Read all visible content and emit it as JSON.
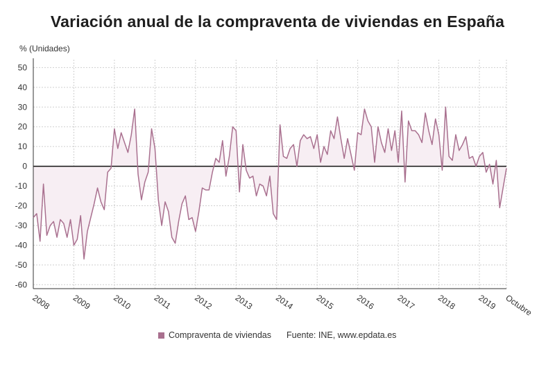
{
  "header": {
    "title": "Variación anual de la compraventa de viviendas en España",
    "unit_label": "% (Unidades)"
  },
  "legend": {
    "series_label": "Compraventa de viviendas",
    "source": "Fuente: INE, www.epdata.es"
  },
  "colors": {
    "line": "#a9708f",
    "fill": "#f7eef3",
    "zero_line": "#111111",
    "grid": "#cfcfcf"
  },
  "chart_data": {
    "type": "line",
    "ylabel": "% (Unidades)",
    "ylim": [
      -62,
      54
    ],
    "yticks": [
      50,
      40,
      30,
      20,
      10,
      0,
      -10,
      -20,
      -30,
      -40,
      -50,
      -60
    ],
    "x_tick_labels": [
      "2008",
      "2009",
      "2010",
      "2011",
      "2012",
      "2013",
      "2014",
      "2015",
      "2016",
      "2017",
      "2018",
      "2019",
      "Octubre"
    ],
    "x_start": "2008-01",
    "x_end": "2019-10",
    "grid": true,
    "area_fill": true,
    "series": [
      {
        "name": "Compraventa de viviendas",
        "values": [
          -26,
          -24,
          -38,
          -9,
          -35,
          -30,
          -28,
          -36,
          -27,
          -29,
          -36,
          -27,
          -40,
          -37,
          -25,
          -47,
          -33,
          -26,
          -19,
          -11,
          -18,
          -22,
          -3,
          -1,
          19,
          9,
          17,
          12,
          7,
          16,
          29,
          -4,
          -17,
          -8,
          -3,
          19,
          9,
          -17,
          -30,
          -18,
          -23,
          -36,
          -39,
          -28,
          -19,
          -15,
          -27,
          -26,
          -33,
          -23,
          -11,
          -12,
          -12,
          -3,
          4,
          2,
          13,
          -5,
          5,
          20,
          18,
          -13,
          11,
          -2,
          -6,
          -5,
          -15,
          -9,
          -10,
          -15,
          -5,
          -24,
          -27,
          21,
          5,
          4,
          9,
          11,
          0,
          13,
          16,
          14,
          15,
          9,
          16,
          2,
          10,
          6,
          18,
          14,
          25,
          14,
          4,
          14,
          6,
          -2,
          17,
          16,
          29,
          23,
          20,
          2,
          20,
          12,
          7,
          19,
          8,
          18,
          2,
          28,
          -8,
          23,
          18,
          18,
          16,
          12,
          27,
          18,
          11,
          24,
          16,
          -2,
          30,
          5,
          3,
          16,
          8,
          11,
          15,
          4,
          5,
          0,
          5,
          7,
          -3,
          1,
          -9,
          3,
          -21,
          -11,
          -1
        ]
      }
    ]
  }
}
